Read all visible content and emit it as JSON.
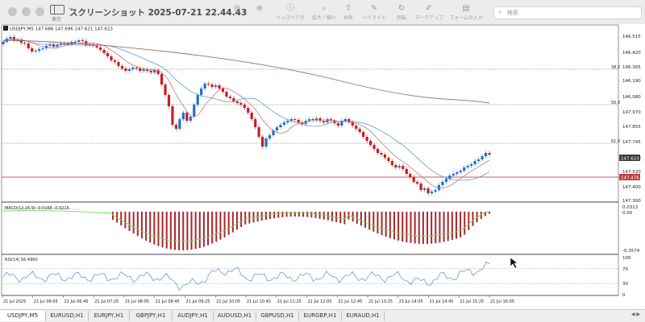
{
  "window": {
    "title": "スクリーンショット 2025-07-21 22.44.43",
    "sidebar_label": "表示"
  },
  "toolbar": {
    "buttons": [
      {
        "label": "",
        "icon": "zoom-out-icon"
      },
      {
        "label": "",
        "icon": "zoom-in-icon"
      },
      {
        "label": "",
        "icon": "share-icon"
      },
      {
        "label": "インスペクタ",
        "icon": "inspector-icon"
      },
      {
        "label": "拡大／縮小",
        "icon": "zoom-icon"
      },
      {
        "label": "共有",
        "icon": "share-icon"
      },
      {
        "label": "ハイライト",
        "icon": "highlight-icon"
      },
      {
        "label": "回転",
        "icon": "rotate-icon"
      },
      {
        "label": "マークアップ",
        "icon": "markup-icon"
      },
      {
        "label": "フォームの入力",
        "icon": "form-icon"
      }
    ],
    "search_placeholder": "検索"
  },
  "main_chart": {
    "symbol_info": "USDJPY,M5  147.686 147.696 147.621 147.623",
    "price_labels": [
      "146.515",
      "146.420",
      "146.305",
      "146.190",
      "146.080",
      "147.970",
      "147.855",
      "147.745",
      "147.630",
      "147.520",
      "147.400",
      "147.300"
    ],
    "fib_labels": [
      "38.2",
      "50.0",
      "61.8"
    ],
    "current_price": "147.623",
    "hline_price": "147.476",
    "colors": {
      "up": "#1f6fd6",
      "down": "#c81e1e",
      "ma_fast": "#c87878",
      "ma_mid": "#5c9ad6",
      "ma_slow": "#a06a5a",
      "hline": "#b42828"
    }
  },
  "macd": {
    "info": "MACD(12,26,9) -0.0168 -0.0216",
    "scale_labels": [
      "0.0313",
      "0.00",
      "-0.3574"
    ]
  },
  "rsi": {
    "info": "RSI(14) 56.4960",
    "scale_labels": [
      "100",
      "70",
      "30",
      "0"
    ]
  },
  "time_labels": [
    "21 Jul 2025",
    "21 Jul 06:05",
    "21 Jul 06:45",
    "21 Jul 07:25",
    "21 Jul 08:05",
    "21 Jul 08:45",
    "21 Jul 09:25",
    "21 Jul 10:05",
    "21 Jul 10:45",
    "21 Jul 11:25",
    "21 Jul 12:05",
    "21 Jul 12:45",
    "21 Jul 13:25",
    "21 Jul 14:05",
    "21 Jul 14:45",
    "21 Jul 15:25",
    "21 Jul 16:05"
  ],
  "tabs": [
    "USDJPY,M5",
    "EURUSD,H1",
    "EURJPY,H1",
    "GBPJPY,H1",
    "AUDJPY,H1",
    "AUDUSD,H1",
    "GBPUSD,H1",
    "EURGBP,H1",
    "EURAUD,H1"
  ],
  "active_tab": 0
}
